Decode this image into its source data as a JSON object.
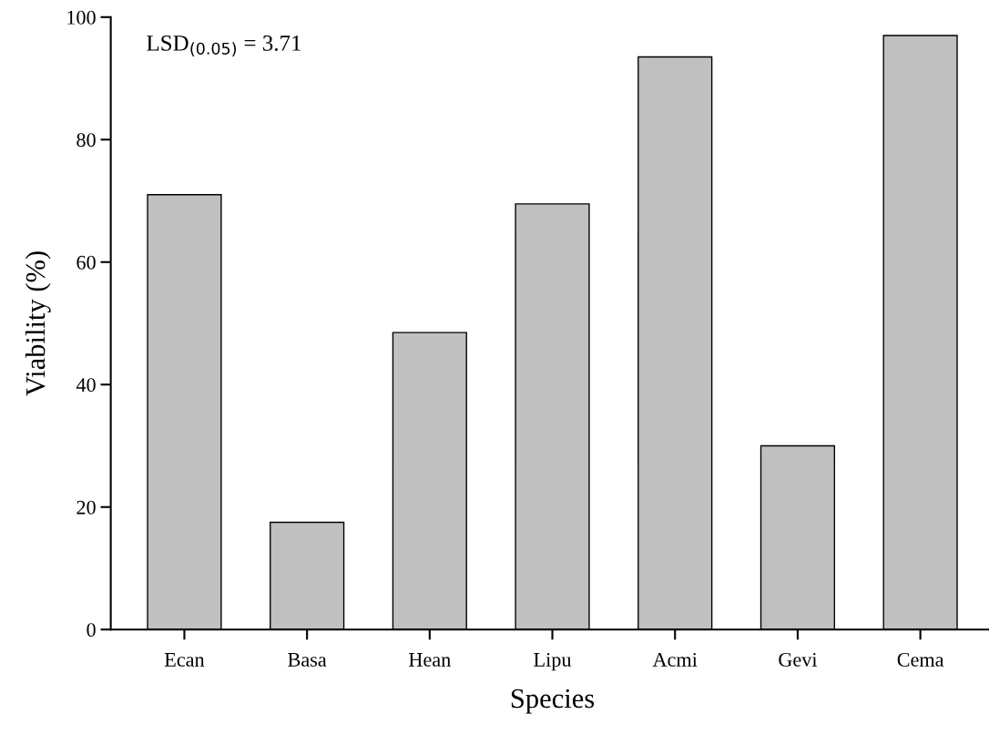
{
  "chart_data": {
    "type": "bar",
    "xlabel": "Species",
    "ylabel": "Viability (%)",
    "categories": [
      "Ecan",
      "Basa",
      "Hean",
      "Lipu",
      "Acmi",
      "Gevi",
      "Cema"
    ],
    "values": [
      71,
      17.5,
      48.5,
      69.5,
      93.5,
      30,
      97
    ],
    "color": "#c0c0c0",
    "ylim": [
      0,
      100
    ],
    "yticks": [
      0,
      20,
      40,
      60,
      80,
      100
    ],
    "grid": false,
    "annotations": [
      "LSD$_{(0.05)}$ = 3.71"
    ]
  }
}
